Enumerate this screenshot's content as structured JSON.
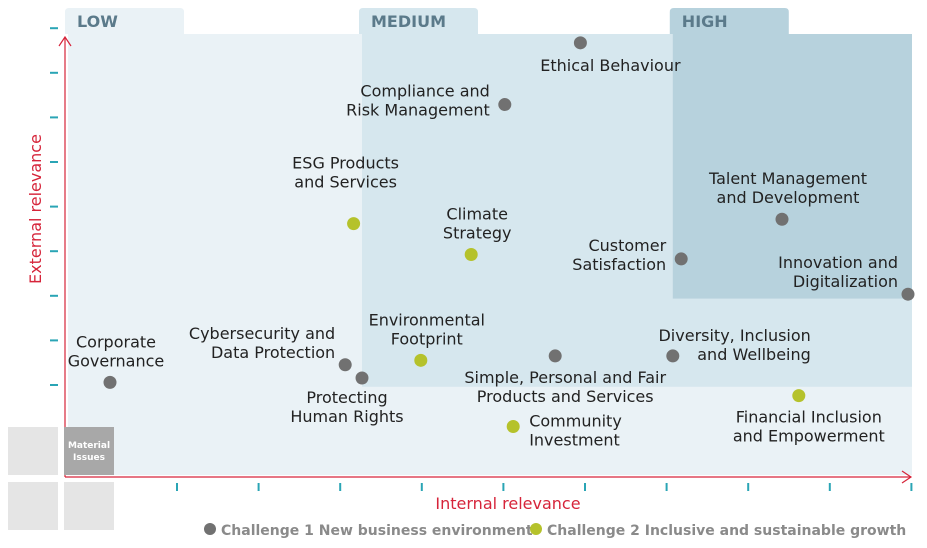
{
  "chart_data": {
    "type": "scatter",
    "title": "",
    "xlabel": "Internal relevance",
    "ylabel": "External relevance",
    "xlim": [
      0,
      10
    ],
    "ylim": [
      0,
      10
    ],
    "zones": [
      {
        "name": "LOW",
        "label": "LOW",
        "x_start": 0,
        "y_end": 10
      },
      {
        "name": "MEDIUM",
        "label": "MEDIUM",
        "x_start": 3.5,
        "y_start": 2,
        "y_end": 10
      },
      {
        "name": "HIGH",
        "label": "HIGH",
        "x_start": 7.2,
        "y_start": 4,
        "y_end": 10
      }
    ],
    "series": [
      {
        "name": "Challenge 1  New business environment",
        "legend_label": "Challenge 1  New business environment",
        "color": "#717171",
        "points": [
          {
            "label": "Ethical Behaviour",
            "label_lines": [
              "Ethical Behaviour"
            ],
            "label_pos": "below-right",
            "x": 6.1,
            "y": 9.8
          },
          {
            "label": "Compliance and Risk Management",
            "label_lines": [
              "Compliance and",
              "Risk Management"
            ],
            "label_pos": "left",
            "x": 5.2,
            "y": 8.4
          },
          {
            "label": "Talent Management and Development",
            "label_lines": [
              "Talent Management",
              "and Development"
            ],
            "label_pos": "above",
            "x": 8.5,
            "y": 5.8
          },
          {
            "label": "Customer Satisfaction",
            "label_lines": [
              "Customer",
              "Satisfaction"
            ],
            "label_pos": "left",
            "x": 7.3,
            "y": 4.9
          },
          {
            "label": "Innovation and Digitalization",
            "label_lines": [
              "Innovation and",
              "Digitalization"
            ],
            "label_pos": "left-above",
            "x": 10.0,
            "y": 4.1
          },
          {
            "label": "Diversity, Inclusion and Wellbeing",
            "label_lines": [
              "Diversity, Inclusion",
              "and Wellbeing"
            ],
            "label_pos": "right",
            "x": 7.2,
            "y": 2.7
          },
          {
            "label": "Simple, Personal and Fair Products and Services",
            "label_lines": [
              "Simple, Personal and Fair",
              "Products and Services"
            ],
            "label_pos": "below",
            "x": 5.8,
            "y": 2.7
          },
          {
            "label": "Cybersecurity and Data Protection",
            "label_lines": [
              "Cybersecurity and",
              "Data Protection"
            ],
            "label_pos": "left-above",
            "x": 3.3,
            "y": 2.5
          },
          {
            "label": "Protecting Human Rights",
            "label_lines": [
              "Protecting",
              "Human Rights"
            ],
            "label_pos": "below-left",
            "x": 3.5,
            "y": 2.2
          },
          {
            "label": "Corporate Governance",
            "label_lines": [
              "Corporate",
              "Governance"
            ],
            "label_pos": "above",
            "x": 0.5,
            "y": 2.1
          }
        ]
      },
      {
        "name": "Challenge 2  Inclusive and sustainable growth",
        "legend_label": "Challenge 2  Inclusive and sustainable growth",
        "color": "#b5c22b",
        "points": [
          {
            "label": "ESG Products and Services",
            "label_lines": [
              "ESG Products",
              "and Services"
            ],
            "label_pos": "above-left",
            "x": 3.4,
            "y": 5.7
          },
          {
            "label": "Climate Strategy",
            "label_lines": [
              "Climate",
              "Strategy"
            ],
            "label_pos": "above",
            "x": 4.8,
            "y": 5.0
          },
          {
            "label": "Environmental Footprint",
            "label_lines": [
              "Environmental",
              "Footprint"
            ],
            "label_pos": "above",
            "x": 4.2,
            "y": 2.6
          },
          {
            "label": "Community Investment",
            "label_lines": [
              "Community",
              "Investment"
            ],
            "label_pos": "right",
            "x": 5.3,
            "y": 1.1
          },
          {
            "label": "Financial Inclusion and Empowerment",
            "label_lines": [
              "Financial Inclusion",
              "and Empowerment"
            ],
            "label_pos": "below",
            "x": 8.7,
            "y": 1.8
          }
        ]
      }
    ],
    "legend_position": "bottom",
    "corner_legend": {
      "label": "Material Issues",
      "label_lines": [
        "Material",
        "Issues"
      ]
    }
  },
  "colors": {
    "low_zone": "#eaf2f6",
    "medium_zone": "#d6e7ee",
    "high_zone": "#b7d2dd",
    "zone_label": "#5b7a8a",
    "axis": "#d6243a",
    "tick": "#2aa5b5",
    "text": "#222222",
    "legend_text": "#8a8a8a",
    "box_grey": "#e5e5e5",
    "box_dark": "#a8a8a8"
  }
}
